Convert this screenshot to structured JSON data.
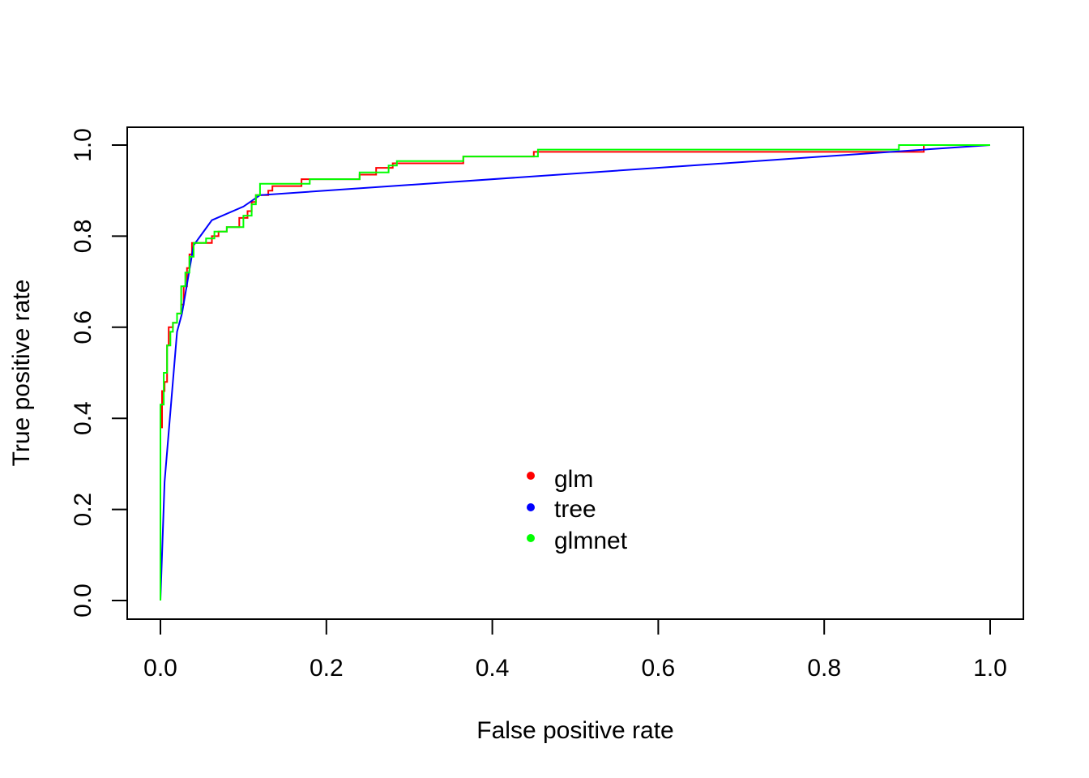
{
  "chart_data": {
    "type": "line",
    "title": "",
    "xlabel": "False positive rate",
    "ylabel": "True positive rate",
    "xlim": [
      0,
      1
    ],
    "ylim": [
      0,
      1
    ],
    "x_ticks": [
      "0.0",
      "0.2",
      "0.4",
      "0.6",
      "0.8",
      "1.0"
    ],
    "y_ticks": [
      "0.0",
      "0.2",
      "0.4",
      "0.6",
      "0.8",
      "1.0"
    ],
    "grid": false,
    "legend_position": "bottom-center",
    "series": [
      {
        "name": "glm",
        "color": "#ff0000",
        "points": [
          [
            0.0,
            0.0
          ],
          [
            0.0,
            0.38
          ],
          [
            0.002,
            0.38
          ],
          [
            0.002,
            0.46
          ],
          [
            0.005,
            0.46
          ],
          [
            0.005,
            0.48
          ],
          [
            0.008,
            0.48
          ],
          [
            0.008,
            0.56
          ],
          [
            0.01,
            0.56
          ],
          [
            0.01,
            0.6
          ],
          [
            0.015,
            0.6
          ],
          [
            0.015,
            0.61
          ],
          [
            0.02,
            0.61
          ],
          [
            0.02,
            0.63
          ],
          [
            0.025,
            0.63
          ],
          [
            0.025,
            0.65
          ],
          [
            0.028,
            0.65
          ],
          [
            0.028,
            0.69
          ],
          [
            0.032,
            0.69
          ],
          [
            0.032,
            0.73
          ],
          [
            0.035,
            0.73
          ],
          [
            0.035,
            0.76
          ],
          [
            0.038,
            0.76
          ],
          [
            0.038,
            0.785
          ],
          [
            0.062,
            0.785
          ],
          [
            0.062,
            0.8
          ],
          [
            0.07,
            0.8
          ],
          [
            0.07,
            0.81
          ],
          [
            0.08,
            0.81
          ],
          [
            0.08,
            0.82
          ],
          [
            0.095,
            0.82
          ],
          [
            0.095,
            0.84
          ],
          [
            0.105,
            0.84
          ],
          [
            0.105,
            0.855
          ],
          [
            0.11,
            0.855
          ],
          [
            0.11,
            0.875
          ],
          [
            0.115,
            0.875
          ],
          [
            0.115,
            0.89
          ],
          [
            0.13,
            0.89
          ],
          [
            0.13,
            0.9
          ],
          [
            0.135,
            0.9
          ],
          [
            0.135,
            0.91
          ],
          [
            0.17,
            0.91
          ],
          [
            0.17,
            0.925
          ],
          [
            0.24,
            0.925
          ],
          [
            0.24,
            0.935
          ],
          [
            0.26,
            0.935
          ],
          [
            0.26,
            0.95
          ],
          [
            0.28,
            0.95
          ],
          [
            0.28,
            0.96
          ],
          [
            0.365,
            0.96
          ],
          [
            0.365,
            0.975
          ],
          [
            0.45,
            0.975
          ],
          [
            0.45,
            0.985
          ],
          [
            0.92,
            0.985
          ],
          [
            0.92,
            1.0
          ],
          [
            1.0,
            1.0
          ]
        ]
      },
      {
        "name": "tree",
        "color": "#0000ff",
        "points": [
          [
            0.0,
            0.0
          ],
          [
            0.005,
            0.26
          ],
          [
            0.02,
            0.59
          ],
          [
            0.026,
            0.63
          ],
          [
            0.04,
            0.78
          ],
          [
            0.062,
            0.835
          ],
          [
            0.1,
            0.865
          ],
          [
            0.12,
            0.89
          ],
          [
            1.0,
            1.0
          ]
        ]
      },
      {
        "name": "glmnet",
        "color": "#00ff00",
        "points": [
          [
            0.0,
            0.0
          ],
          [
            0.0,
            0.43
          ],
          [
            0.004,
            0.43
          ],
          [
            0.004,
            0.5
          ],
          [
            0.008,
            0.5
          ],
          [
            0.008,
            0.56
          ],
          [
            0.012,
            0.56
          ],
          [
            0.012,
            0.59
          ],
          [
            0.015,
            0.59
          ],
          [
            0.015,
            0.61
          ],
          [
            0.02,
            0.61
          ],
          [
            0.02,
            0.63
          ],
          [
            0.025,
            0.63
          ],
          [
            0.025,
            0.69
          ],
          [
            0.03,
            0.69
          ],
          [
            0.03,
            0.72
          ],
          [
            0.035,
            0.72
          ],
          [
            0.035,
            0.755
          ],
          [
            0.04,
            0.755
          ],
          [
            0.04,
            0.785
          ],
          [
            0.055,
            0.785
          ],
          [
            0.055,
            0.795
          ],
          [
            0.065,
            0.795
          ],
          [
            0.065,
            0.81
          ],
          [
            0.08,
            0.81
          ],
          [
            0.08,
            0.82
          ],
          [
            0.1,
            0.82
          ],
          [
            0.1,
            0.845
          ],
          [
            0.11,
            0.845
          ],
          [
            0.11,
            0.87
          ],
          [
            0.115,
            0.87
          ],
          [
            0.115,
            0.89
          ],
          [
            0.12,
            0.89
          ],
          [
            0.12,
            0.915
          ],
          [
            0.18,
            0.915
          ],
          [
            0.18,
            0.925
          ],
          [
            0.24,
            0.925
          ],
          [
            0.24,
            0.94
          ],
          [
            0.275,
            0.94
          ],
          [
            0.275,
            0.955
          ],
          [
            0.285,
            0.955
          ],
          [
            0.285,
            0.965
          ],
          [
            0.365,
            0.965
          ],
          [
            0.365,
            0.975
          ],
          [
            0.455,
            0.975
          ],
          [
            0.455,
            0.99
          ],
          [
            0.89,
            0.99
          ],
          [
            0.89,
            1.0
          ],
          [
            1.0,
            1.0
          ]
        ]
      }
    ]
  }
}
